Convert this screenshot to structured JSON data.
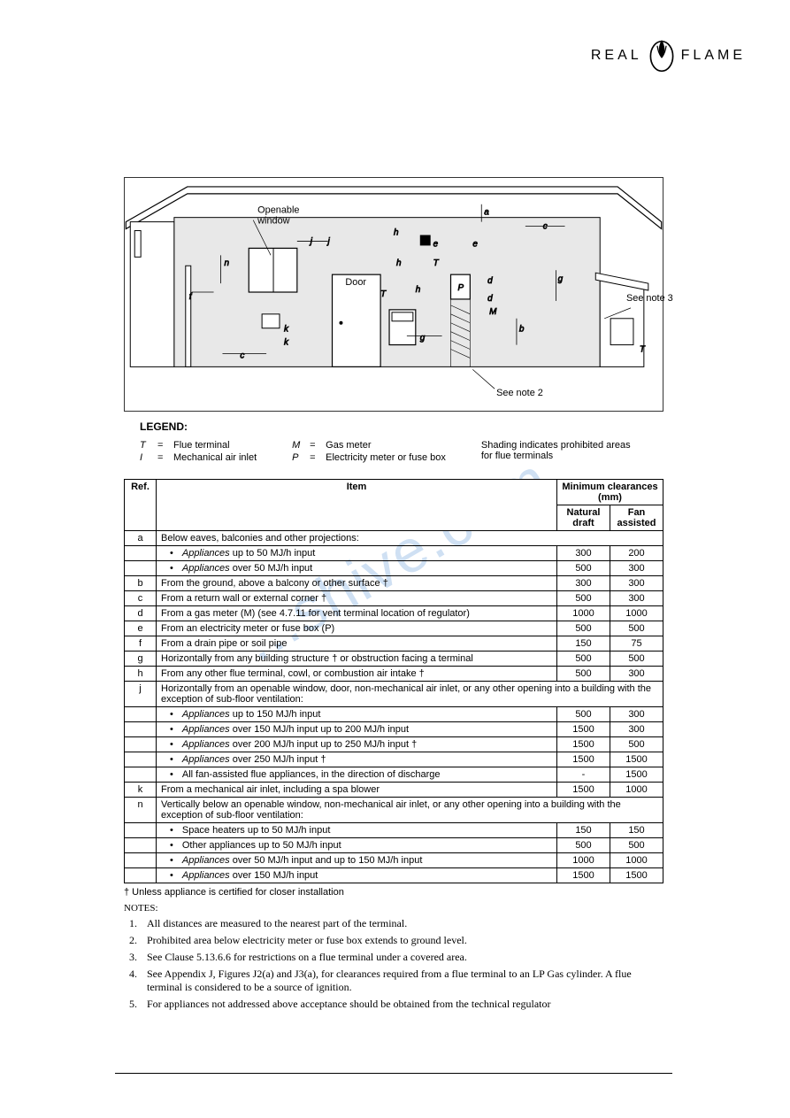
{
  "brand": {
    "left": "REAL",
    "right": "FLAME"
  },
  "watermark": "...shive.com",
  "diagram": {
    "label_openable": "Openable\nwindow",
    "label_door": "Door",
    "label_note2": "See note 2",
    "label_note3": "See note 3",
    "sym_T": "T",
    "sym_I": "I",
    "sym_M": "M",
    "sym_P": "P",
    "dims": [
      "a",
      "b",
      "c",
      "d",
      "e",
      "f",
      "g",
      "h",
      "j",
      "k",
      "n"
    ]
  },
  "legend": {
    "title": "LEGEND:",
    "col1": [
      {
        "sym": "T",
        "txt": "Flue terminal"
      },
      {
        "sym": "I",
        "txt": "Mechanical air inlet"
      }
    ],
    "col2": [
      {
        "sym": "M",
        "txt": "Gas meter"
      },
      {
        "sym": "P",
        "txt": "Electricity meter or fuse box"
      }
    ],
    "note": "Shading indicates prohibited areas for flue terminals"
  },
  "table": {
    "headers": {
      "ref": "Ref.",
      "item": "Item",
      "min": "Minimum clearances (mm)",
      "nat": "Natural draft",
      "fan": "Fan assisted"
    },
    "rows": [
      {
        "ref": "a",
        "item": "Below eaves, balconies and other projections:",
        "span": true
      },
      {
        "bullet": true,
        "item": "Appliances up to 50 MJ/h input",
        "nat": "300",
        "fan": "200",
        "ital": true
      },
      {
        "bullet": true,
        "item": "Appliances over 50 MJ/h input",
        "nat": "500",
        "fan": "300",
        "ital": true
      },
      {
        "ref": "b",
        "item": "From the ground, above a balcony or other surface †",
        "nat": "300",
        "fan": "300"
      },
      {
        "ref": "c",
        "item": "From a return wall or external corner †",
        "nat": "500",
        "fan": "300"
      },
      {
        "ref": "d",
        "item": "From a gas meter (M) (see 4.7.11 for vent terminal location of regulator)",
        "nat": "1000",
        "fan": "1000"
      },
      {
        "ref": "e",
        "item": "From an electricity meter or fuse box (P)",
        "nat": "500",
        "fan": "500"
      },
      {
        "ref": "f",
        "item": "From a drain pipe or soil pipe",
        "nat": "150",
        "fan": "75"
      },
      {
        "ref": "g",
        "item": "Horizontally from any building structure † or obstruction facing a terminal",
        "nat": "500",
        "fan": "500"
      },
      {
        "ref": "h",
        "item": "From any other flue terminal, cowl, or combustion air intake †",
        "nat": "500",
        "fan": "300"
      },
      {
        "ref": "j",
        "item": "Horizontally from an openable window, door, non-mechanical air inlet, or any other opening into a building with the exception of sub-floor ventilation:",
        "span": true
      },
      {
        "bullet": true,
        "item": "Appliances up to 150 MJ/h input",
        "nat": "500",
        "fan": "300",
        "ital": true
      },
      {
        "bullet": true,
        "item": "Appliances over 150 MJ/h input up to 200 MJ/h input",
        "nat": "1500",
        "fan": "300",
        "ital": true
      },
      {
        "bullet": true,
        "item": "Appliances over 200 MJ/h input up to 250 MJ/h input †",
        "nat": "1500",
        "fan": "500",
        "ital": true
      },
      {
        "bullet": true,
        "item": "Appliances over 250 MJ/h input †",
        "nat": "1500",
        "fan": "1500",
        "ital": true
      },
      {
        "bullet": true,
        "item": "All fan-assisted flue appliances, in the direction of discharge",
        "nat": "-",
        "fan": "1500"
      },
      {
        "ref": "k",
        "item": "From a mechanical air inlet, including a spa blower",
        "nat": "1500",
        "fan": "1000"
      },
      {
        "ref": "n",
        "item": "Vertically below an openable window, non-mechanical air inlet, or any other opening into a building with the exception of sub-floor ventilation:",
        "span": true
      },
      {
        "bullet": true,
        "item": "Space heaters up to 50 MJ/h input",
        "nat": "150",
        "fan": "150"
      },
      {
        "bullet": true,
        "item": "Other appliances up to 50 MJ/h input",
        "nat": "500",
        "fan": "500"
      },
      {
        "bullet": true,
        "item": "Appliances over 50 MJ/h input and up to 150 MJ/h input",
        "nat": "1000",
        "fan": "1000",
        "ital": true
      },
      {
        "bullet": true,
        "item": "Appliances over 150 MJ/h input",
        "nat": "1500",
        "fan": "1500",
        "ital": true
      }
    ]
  },
  "dagger": "†  Unless appliance is certified for closer installation",
  "notes_title": "NOTES:",
  "notes": [
    "All distances are measured to the nearest part of the terminal.",
    "Prohibited area below electricity meter or fuse box extends to ground level.",
    "See Clause 5.13.6.6 for restrictions on a flue terminal under a covered area.",
    "See Appendix J, Figures J2(a) and J3(a), for clearances required from a flue terminal to an LP Gas cylinder. A flue terminal is considered to be a source of ignition.",
    "For appliances not addressed above acceptance should be obtained from the technical regulator"
  ]
}
